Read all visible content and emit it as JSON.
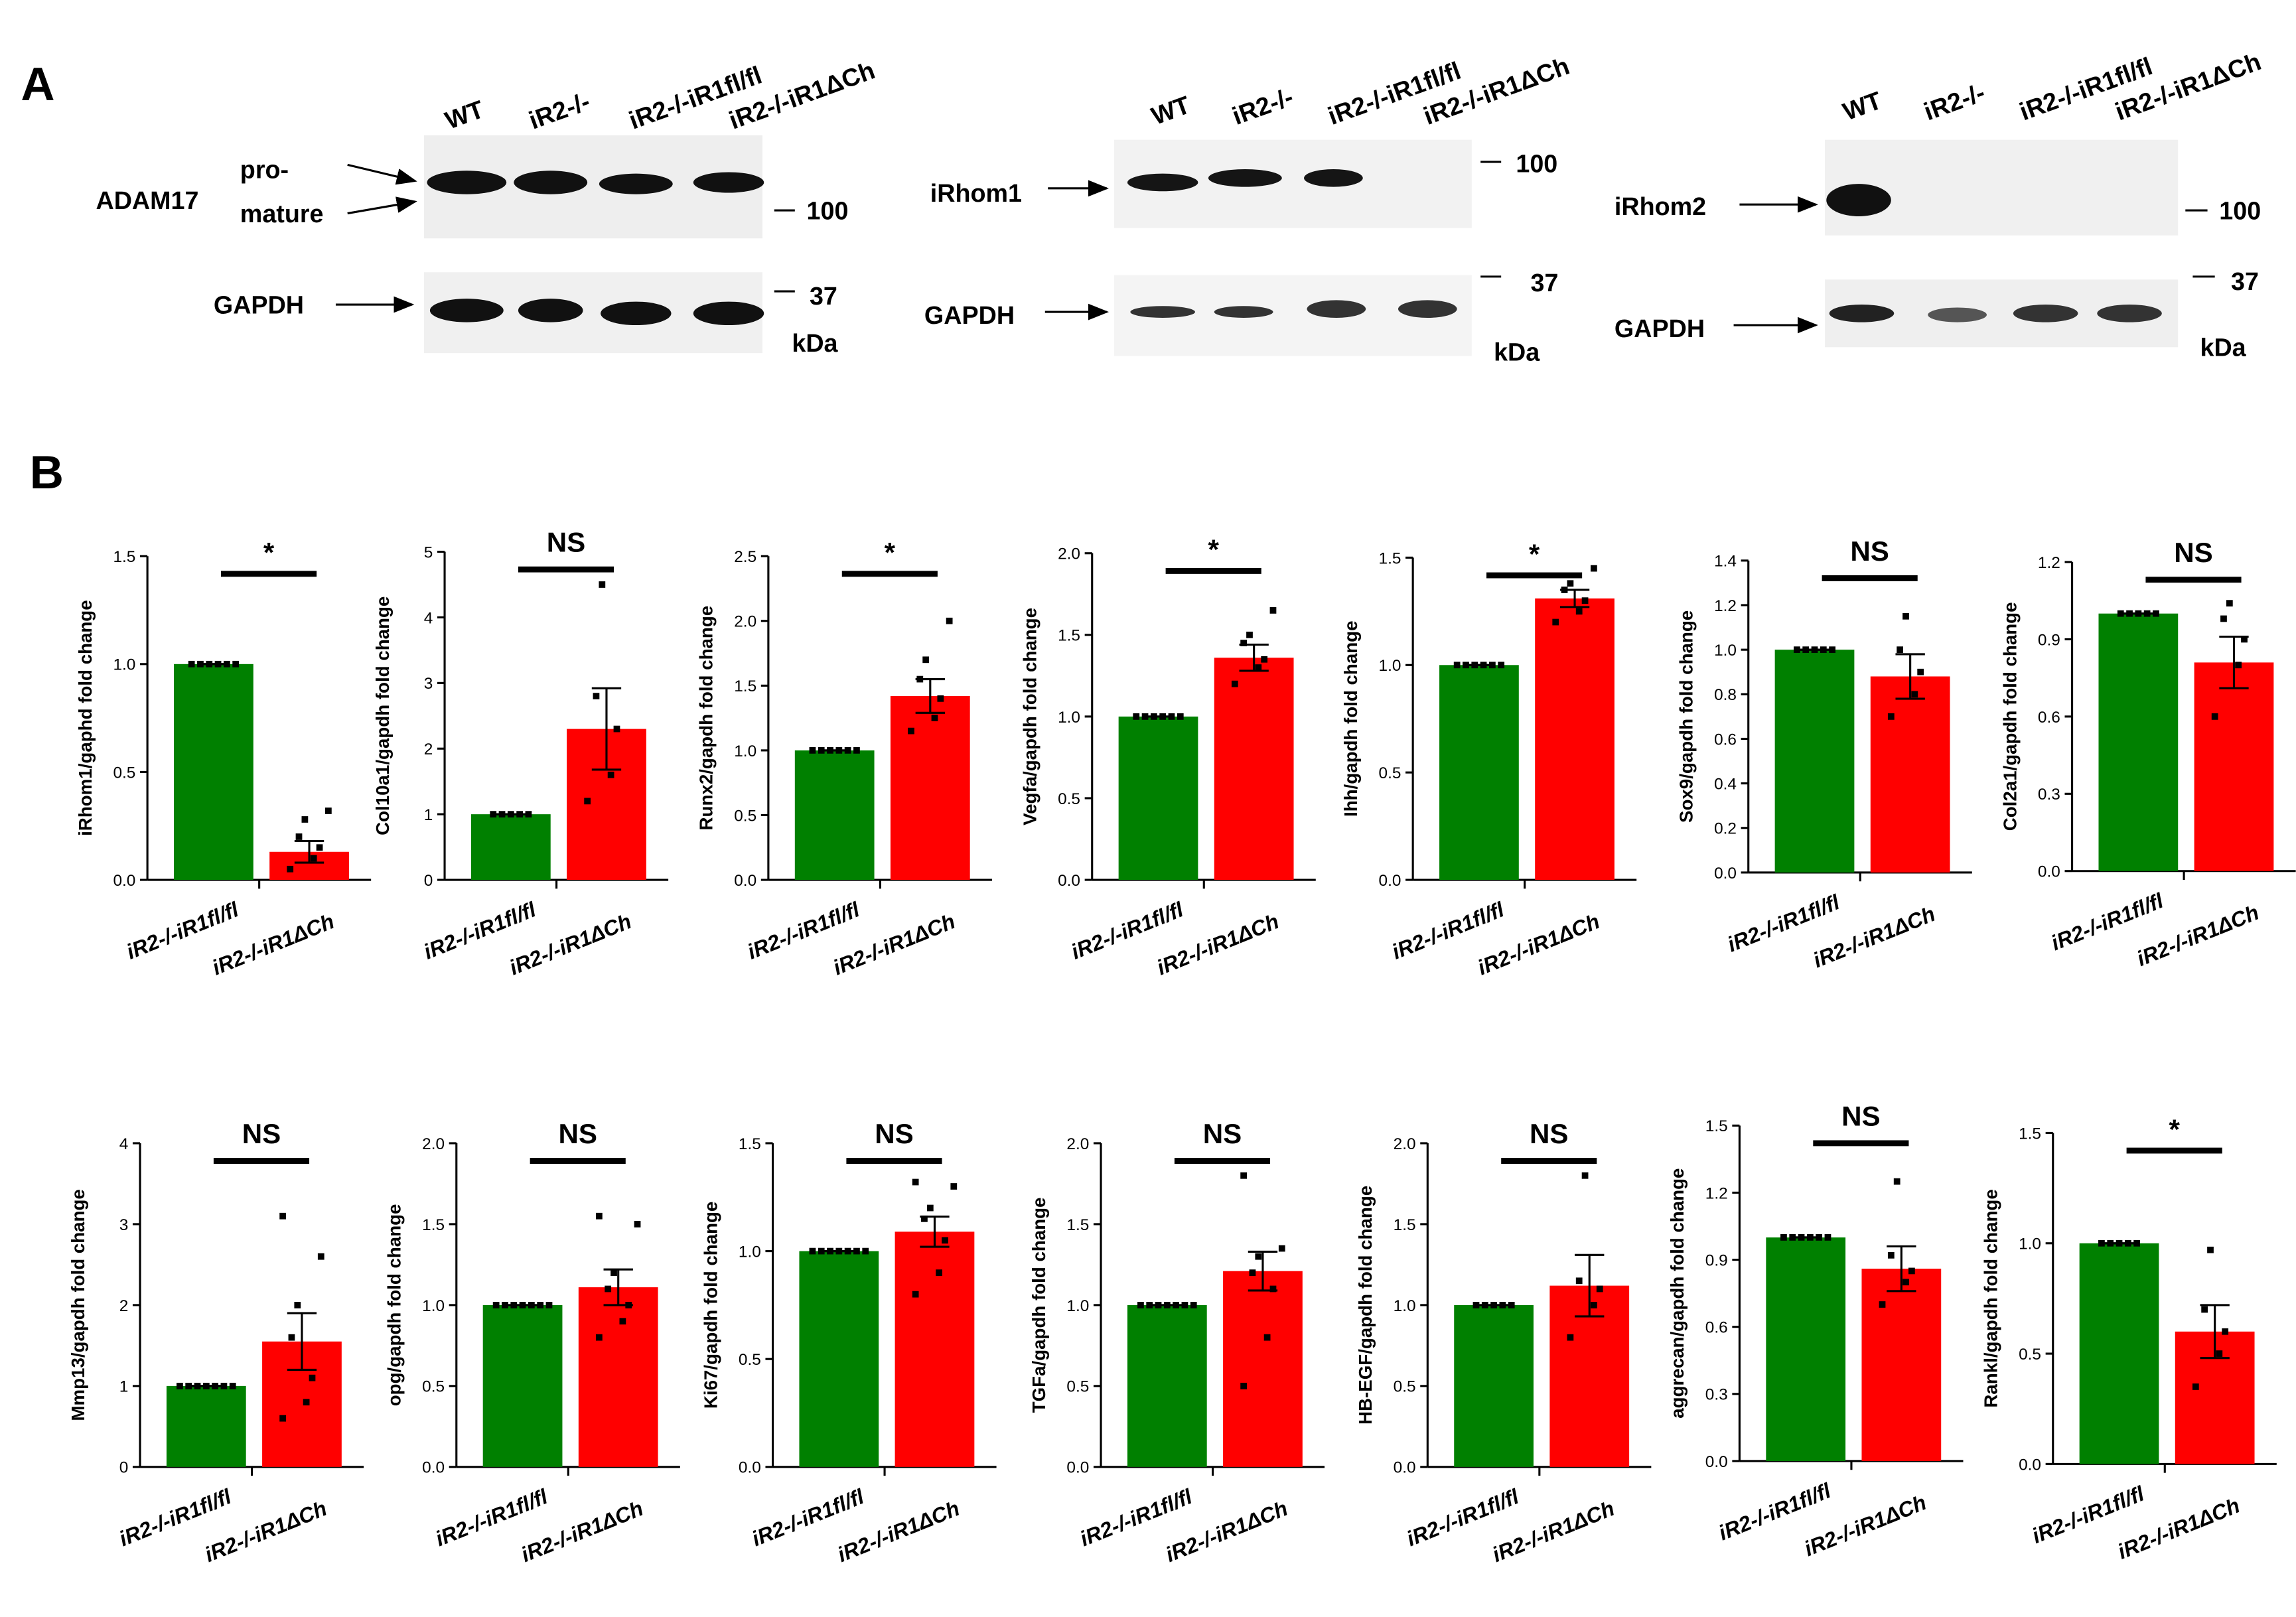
{
  "panel_a": {
    "label": "A",
    "unit": "kDa",
    "blots": [
      {
        "lanes": [
          "WT",
          "iR2-/-",
          "iR2-/-iR1fl/fl",
          "iR2-/-iR1ΔCh"
        ],
        "target": "ADAM17",
        "forms": [
          "pro-",
          "mature"
        ],
        "loading": "GAPDH",
        "markers": [
          "100",
          "37"
        ]
      },
      {
        "lanes": [
          "WT",
          "iR2-/-",
          "iR2-/-iR1fl/fl",
          "iR2-/-iR1ΔCh"
        ],
        "target": "iRhom1",
        "loading": "GAPDH",
        "markers": [
          "100",
          "37"
        ]
      },
      {
        "lanes": [
          "WT",
          "iR2-/-",
          "iR2-/-iR1fl/fl",
          "iR2-/-iR1ΔCh"
        ],
        "target": "iRhom2",
        "loading": "GAPDH",
        "markers": [
          "100",
          "37"
        ]
      }
    ]
  },
  "panel_b_label": "B",
  "chart_data": [
    {
      "type": "bar",
      "y_label": "iRhom1/gaphd fold change",
      "annotation": "*",
      "categories": [
        "iR2-/-iR1fl/fl",
        "iR2-/-iR1ΔCh"
      ],
      "colors": [
        "#008000",
        "#ff0000"
      ],
      "values": [
        1.0,
        0.13
      ],
      "errors": [
        0,
        0.05
      ],
      "points": [
        [
          1,
          1,
          1,
          1,
          1,
          1
        ],
        [
          0.05,
          0.1,
          0.15,
          0.2,
          0.28,
          0.32
        ]
      ],
      "ylim": [
        0,
        1.5
      ],
      "yticks": [
        {
          "value": 0,
          "label": "0.0"
        },
        {
          "value": 0.5,
          "label": "0.5"
        },
        {
          "value": 1,
          "label": "1.0"
        },
        {
          "value": 1.5,
          "label": "1.5"
        }
      ]
    },
    {
      "type": "bar",
      "y_label": "Col10a1/gapdh fold change",
      "annotation": "NS",
      "categories": [
        "iR2-/-iR1fl/fl",
        "iR2-/-iR1ΔCh"
      ],
      "colors": [
        "#008000",
        "#ff0000"
      ],
      "values": [
        1.0,
        2.3
      ],
      "errors": [
        0,
        0.62
      ],
      "points": [
        [
          1,
          1,
          1,
          1,
          1
        ],
        [
          1.2,
          1.6,
          2.3,
          2.8,
          4.5
        ]
      ],
      "ylim": [
        0,
        5
      ],
      "yticks": [
        0,
        1,
        2,
        3,
        4,
        5
      ]
    },
    {
      "type": "bar",
      "y_label": "Runx2/gapdh fold change",
      "annotation": "*",
      "categories": [
        "iR2-/-iR1fl/fl",
        "iR2-/-iR1ΔCh"
      ],
      "colors": [
        "#008000",
        "#ff0000"
      ],
      "values": [
        1.0,
        1.42
      ],
      "errors": [
        0,
        0.13
      ],
      "points": [
        [
          1,
          1,
          1,
          1,
          1,
          1
        ],
        [
          1.15,
          1.25,
          1.4,
          1.55,
          1.7,
          2.0
        ]
      ],
      "ylim": [
        0,
        2.5
      ],
      "yticks": [
        {
          "value": 0,
          "label": "0.0"
        },
        {
          "value": 0.5,
          "label": "0.5"
        },
        {
          "value": 1,
          "label": "1.0"
        },
        {
          "value": 1.5,
          "label": "1.5"
        },
        {
          "value": 2,
          "label": "2.0"
        },
        {
          "value": 2.5,
          "label": "2.5"
        }
      ]
    },
    {
      "type": "bar",
      "y_label": "Vegfa/gapdh fold change",
      "annotation": "*",
      "categories": [
        "iR2-/-iR1fl/fl",
        "iR2-/-iR1ΔCh"
      ],
      "colors": [
        "#008000",
        "#ff0000"
      ],
      "values": [
        1.0,
        1.36
      ],
      "errors": [
        0,
        0.08
      ],
      "points": [
        [
          1,
          1,
          1,
          1,
          1,
          1
        ],
        [
          1.2,
          1.3,
          1.35,
          1.45,
          1.5,
          1.65
        ]
      ],
      "ylim": [
        0,
        2
      ],
      "yticks": [
        {
          "value": 0,
          "label": "0.0"
        },
        {
          "value": 0.5,
          "label": "0.5"
        },
        {
          "value": 1,
          "label": "1.0"
        },
        {
          "value": 1.5,
          "label": "1.5"
        },
        {
          "value": 2,
          "label": "2.0"
        }
      ]
    },
    {
      "type": "bar",
      "y_label": "Ihh/gapdh fold change",
      "annotation": "*",
      "categories": [
        "iR2-/-iR1fl/fl",
        "iR2-/-iR1ΔCh"
      ],
      "colors": [
        "#008000",
        "#ff0000"
      ],
      "values": [
        1.0,
        1.31
      ],
      "errors": [
        0,
        0.04
      ],
      "points": [
        [
          1,
          1,
          1,
          1,
          1,
          1
        ],
        [
          1.2,
          1.25,
          1.3,
          1.35,
          1.38,
          1.45
        ]
      ],
      "ylim": [
        0,
        1.5
      ],
      "yticks": [
        {
          "value": 0,
          "label": "0.0"
        },
        {
          "value": 0.5,
          "label": "0.5"
        },
        {
          "value": 1,
          "label": "1.0"
        },
        {
          "value": 1.5,
          "label": "1.5"
        }
      ]
    },
    {
      "type": "bar",
      "y_label": "Sox9/gapdh fold change",
      "annotation": "NS",
      "categories": [
        "iR2-/-iR1fl/fl",
        "iR2-/-iR1ΔCh"
      ],
      "colors": [
        "#008000",
        "#ff0000"
      ],
      "values": [
        1.0,
        0.88
      ],
      "errors": [
        0,
        0.1
      ],
      "points": [
        [
          1,
          1,
          1,
          1,
          1
        ],
        [
          0.7,
          0.8,
          0.9,
          1.0,
          1.15
        ]
      ],
      "ylim": [
        0,
        1.4
      ],
      "yticks": [
        {
          "value": 0,
          "label": "0.0"
        },
        {
          "value": 0.2,
          "label": "0.2"
        },
        {
          "value": 0.4,
          "label": "0.4"
        },
        {
          "value": 0.6,
          "label": "0.6"
        },
        {
          "value": 0.8,
          "label": "0.8"
        },
        {
          "value": 1,
          "label": "1.0"
        },
        {
          "value": 1.2,
          "label": "1.2"
        },
        {
          "value": 1.4,
          "label": "1.4"
        }
      ]
    },
    {
      "type": "bar",
      "y_label": "Col2a1/gapdh fold change",
      "annotation": "NS",
      "categories": [
        "iR2-/-iR1fl/fl",
        "iR2-/-iR1ΔCh"
      ],
      "colors": [
        "#008000",
        "#ff0000"
      ],
      "values": [
        1.0,
        0.81
      ],
      "errors": [
        0,
        0.1
      ],
      "points": [
        [
          1,
          1,
          1,
          1,
          1
        ],
        [
          0.6,
          0.8,
          0.9,
          0.98,
          1.04
        ]
      ],
      "ylim": [
        0,
        1.2
      ],
      "yticks": [
        {
          "value": 0,
          "label": "0.0"
        },
        {
          "value": 0.3,
          "label": "0.3"
        },
        {
          "value": 0.6,
          "label": "0.6"
        },
        {
          "value": 0.9,
          "label": "0.9"
        },
        {
          "value": 1.2,
          "label": "1.2"
        }
      ]
    },
    {
      "type": "bar",
      "y_label": "Mmp13/gapdh fold change",
      "annotation": "NS",
      "categories": [
        "iR2-/-iR1fl/fl",
        "iR2-/-iR1ΔCh"
      ],
      "colors": [
        "#008000",
        "#ff0000"
      ],
      "values": [
        1.0,
        1.55
      ],
      "errors": [
        0,
        0.35
      ],
      "points": [
        [
          1,
          1,
          1,
          1,
          1,
          1,
          1
        ],
        [
          0.6,
          0.8,
          1.1,
          1.6,
          2.0,
          2.6,
          3.1
        ]
      ],
      "ylim": [
        0,
        4
      ],
      "yticks": [
        0,
        1,
        2,
        3,
        4
      ]
    },
    {
      "type": "bar",
      "y_label": "opg/gapdh fold change",
      "annotation": "NS",
      "categories": [
        "iR2-/-iR1fl/fl",
        "iR2-/-iR1ΔCh"
      ],
      "colors": [
        "#008000",
        "#ff0000"
      ],
      "values": [
        1.0,
        1.11
      ],
      "errors": [
        0,
        0.11
      ],
      "points": [
        [
          1,
          1,
          1,
          1,
          1,
          1,
          1
        ],
        [
          0.8,
          0.9,
          1.0,
          1.1,
          1.2,
          1.5,
          1.55
        ]
      ],
      "ylim": [
        0,
        2
      ],
      "yticks": [
        {
          "value": 0,
          "label": "0.0"
        },
        {
          "value": 0.5,
          "label": "0.5"
        },
        {
          "value": 1,
          "label": "1.0"
        },
        {
          "value": 1.5,
          "label": "1.5"
        },
        {
          "value": 2,
          "label": "2.0"
        }
      ]
    },
    {
      "type": "bar",
      "y_label": "Ki67/gapdh fold change",
      "annotation": "NS",
      "categories": [
        "iR2-/-iR1fl/fl",
        "iR2-/-iR1ΔCh"
      ],
      "colors": [
        "#008000",
        "#ff0000"
      ],
      "values": [
        1.0,
        1.09
      ],
      "errors": [
        0,
        0.07
      ],
      "points": [
        [
          1,
          1,
          1,
          1,
          1,
          1,
          1
        ],
        [
          0.8,
          0.9,
          1.05,
          1.15,
          1.2,
          1.3,
          1.32
        ]
      ],
      "ylim": [
        0,
        1.5
      ],
      "yticks": [
        {
          "value": 0,
          "label": "0.0"
        },
        {
          "value": 0.5,
          "label": "0.5"
        },
        {
          "value": 1,
          "label": "1.0"
        },
        {
          "value": 1.5,
          "label": "1.5"
        }
      ]
    },
    {
      "type": "bar",
      "y_label": "TGFa/gapdh fold change",
      "annotation": "NS",
      "categories": [
        "iR2-/-iR1fl/fl",
        "iR2-/-iR1ΔCh"
      ],
      "colors": [
        "#008000",
        "#ff0000"
      ],
      "values": [
        1.0,
        1.21
      ],
      "errors": [
        0,
        0.12
      ],
      "points": [
        [
          1,
          1,
          1,
          1,
          1,
          1,
          1
        ],
        [
          0.5,
          0.8,
          1.1,
          1.2,
          1.3,
          1.35,
          1.8
        ]
      ],
      "ylim": [
        0,
        2
      ],
      "yticks": [
        {
          "value": 0,
          "label": "0.0"
        },
        {
          "value": 0.5,
          "label": "0.5"
        },
        {
          "value": 1,
          "label": "1.0"
        },
        {
          "value": 1.5,
          "label": "1.5"
        },
        {
          "value": 2,
          "label": "2.0"
        }
      ]
    },
    {
      "type": "bar",
      "y_label": "HB-EGF/gapdh fold change",
      "annotation": "NS",
      "categories": [
        "iR2-/-iR1fl/fl",
        "iR2-/-iR1ΔCh"
      ],
      "colors": [
        "#008000",
        "#ff0000"
      ],
      "values": [
        1.0,
        1.12
      ],
      "errors": [
        0,
        0.19
      ],
      "points": [
        [
          1,
          1,
          1,
          1,
          1
        ],
        [
          0.8,
          1.0,
          1.1,
          1.15,
          1.8
        ]
      ],
      "ylim": [
        0,
        2
      ],
      "yticks": [
        {
          "value": 0,
          "label": "0.0"
        },
        {
          "value": 0.5,
          "label": "0.5"
        },
        {
          "value": 1,
          "label": "1.0"
        },
        {
          "value": 1.5,
          "label": "1.5"
        },
        {
          "value": 2,
          "label": "2.0"
        }
      ]
    },
    {
      "type": "bar",
      "y_label": "aggrecan/gapdh fold change",
      "annotation": "NS",
      "categories": [
        "iR2-/-iR1fl/fl",
        "iR2-/-iR1ΔCh"
      ],
      "colors": [
        "#008000",
        "#ff0000"
      ],
      "values": [
        1.0,
        0.86
      ],
      "errors": [
        0,
        0.1
      ],
      "points": [
        [
          1,
          1,
          1,
          1,
          1,
          1
        ],
        [
          0.7,
          0.8,
          0.85,
          0.92,
          1.25
        ]
      ],
      "ylim": [
        0,
        1.5
      ],
      "yticks": [
        {
          "value": 0,
          "label": "0.0"
        },
        {
          "value": 0.3,
          "label": "0.3"
        },
        {
          "value": 0.6,
          "label": "0.6"
        },
        {
          "value": 0.9,
          "label": "0.9"
        },
        {
          "value": 1.2,
          "label": "1.2"
        },
        {
          "value": 1.5,
          "label": "1.5"
        }
      ]
    },
    {
      "type": "bar",
      "y_label": "Rankl/gapdh fold change",
      "annotation": "*",
      "categories": [
        "iR2-/-iR1fl/fl",
        "iR2-/-iR1ΔCh"
      ],
      "colors": [
        "#008000",
        "#ff0000"
      ],
      "values": [
        1.0,
        0.6
      ],
      "errors": [
        0,
        0.12
      ],
      "points": [
        [
          1,
          1,
          1,
          1,
          1
        ],
        [
          0.35,
          0.5,
          0.6,
          0.7,
          0.97
        ]
      ],
      "ylim": [
        0,
        1.5
      ],
      "yticks": [
        {
          "value": 0,
          "label": "0.0"
        },
        {
          "value": 0.5,
          "label": "0.5"
        },
        {
          "value": 1,
          "label": "1.0"
        },
        {
          "value": 1.5,
          "label": "1.5"
        }
      ]
    }
  ]
}
